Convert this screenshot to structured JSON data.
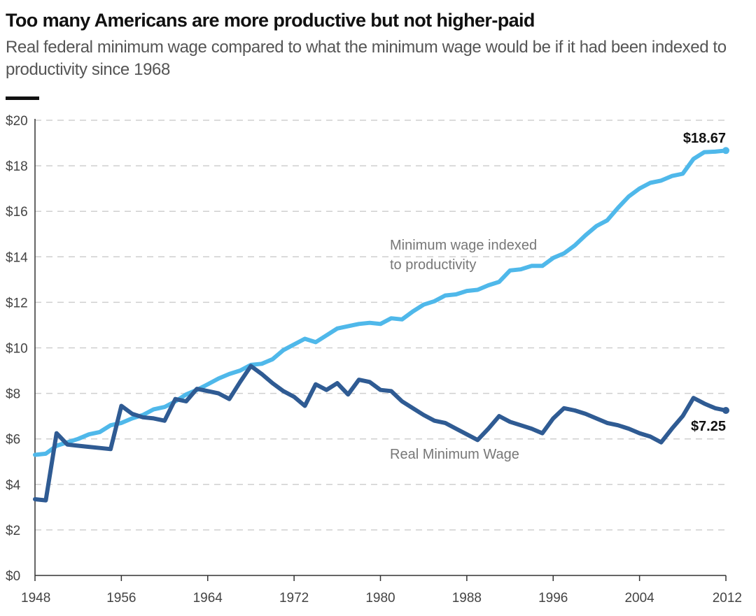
{
  "header": {
    "title": "Too many Americans are more productive but not higher-paid",
    "subtitle": "Real federal minimum wage compared to what the minimum wage would be if it had been indexed to productivity since 1968"
  },
  "colors": {
    "productivity_line": "#4fb8ea",
    "real_wage_line": "#2f5b93",
    "grid": "#cfcfcf",
    "axis": "#333333"
  },
  "chart_data": {
    "type": "line",
    "title": "Too many Americans are more productive but not higher-paid",
    "subtitle": "Real federal minimum wage compared to what the minimum wage would be if it had been indexed to productivity since 1968",
    "xlabel": "",
    "ylabel": "",
    "xlim": [
      1948,
      2012
    ],
    "ylim": [
      0,
      20
    ],
    "grid": true,
    "legend": "none",
    "x_ticks": [
      1948,
      1956,
      1964,
      1972,
      1980,
      1988,
      1996,
      2004,
      2012
    ],
    "y_ticks": [
      0,
      2,
      4,
      6,
      8,
      10,
      12,
      14,
      16,
      18,
      20
    ],
    "y_tick_labels": [
      "$0",
      "$2",
      "$4",
      "$6",
      "$8",
      "$10",
      "$12",
      "$14",
      "$16",
      "$18",
      "$20"
    ],
    "x_tick_labels": [
      "1948",
      "1956",
      "1964",
      "1972",
      "1980",
      "1988",
      "1996",
      "2004",
      "2012"
    ],
    "series": [
      {
        "key": "productivity",
        "label_lines": [
          "Minimum wage indexed",
          "to productivity"
        ],
        "label_at": [
          1948,
          0
        ],
        "end_label": "$18.67",
        "points": [
          [
            1948,
            5.3
          ],
          [
            1949,
            5.35
          ],
          [
            1950,
            5.7
          ],
          [
            1951,
            5.85
          ],
          [
            1952,
            6.0
          ],
          [
            1953,
            6.2
          ],
          [
            1954,
            6.3
          ],
          [
            1955,
            6.6
          ],
          [
            1956,
            6.7
          ],
          [
            1957,
            6.9
          ],
          [
            1958,
            7.05
          ],
          [
            1959,
            7.3
          ],
          [
            1960,
            7.4
          ],
          [
            1961,
            7.65
          ],
          [
            1962,
            7.95
          ],
          [
            1963,
            8.15
          ],
          [
            1964,
            8.4
          ],
          [
            1965,
            8.65
          ],
          [
            1966,
            8.85
          ],
          [
            1967,
            9.0
          ],
          [
            1968,
            9.25
          ],
          [
            1969,
            9.3
          ],
          [
            1970,
            9.5
          ],
          [
            1971,
            9.9
          ],
          [
            1972,
            10.15
          ],
          [
            1973,
            10.4
          ],
          [
            1974,
            10.25
          ],
          [
            1975,
            10.55
          ],
          [
            1976,
            10.85
          ],
          [
            1977,
            10.95
          ],
          [
            1978,
            11.05
          ],
          [
            1979,
            11.1
          ],
          [
            1980,
            11.05
          ],
          [
            1981,
            11.3
          ],
          [
            1982,
            11.25
          ],
          [
            1983,
            11.6
          ],
          [
            1984,
            11.9
          ],
          [
            1985,
            12.05
          ],
          [
            1986,
            12.3
          ],
          [
            1987,
            12.35
          ],
          [
            1988,
            12.5
          ],
          [
            1989,
            12.55
          ],
          [
            1990,
            12.75
          ],
          [
            1991,
            12.9
          ],
          [
            1992,
            13.4
          ],
          [
            1993,
            13.45
          ],
          [
            1994,
            13.6
          ],
          [
            1995,
            13.6
          ],
          [
            1996,
            13.95
          ],
          [
            1997,
            14.15
          ],
          [
            1998,
            14.5
          ],
          [
            1999,
            14.95
          ],
          [
            2000,
            15.35
          ],
          [
            2001,
            15.6
          ],
          [
            2002,
            16.15
          ],
          [
            2003,
            16.65
          ],
          [
            2004,
            17.0
          ],
          [
            2005,
            17.25
          ],
          [
            2006,
            17.35
          ],
          [
            2007,
            17.55
          ],
          [
            2008,
            17.65
          ],
          [
            2009,
            18.3
          ],
          [
            2010,
            18.6
          ],
          [
            2011,
            18.62
          ],
          [
            2012,
            18.67
          ]
        ]
      },
      {
        "key": "real_wage",
        "label_lines": [
          "Real Minimum Wage"
        ],
        "end_label": "$7.25",
        "points": [
          [
            1948,
            3.35
          ],
          [
            1949,
            3.3
          ],
          [
            1950,
            6.25
          ],
          [
            1951,
            5.75
          ],
          [
            1952,
            5.7
          ],
          [
            1953,
            5.65
          ],
          [
            1954,
            5.6
          ],
          [
            1955,
            5.55
          ],
          [
            1956,
            7.45
          ],
          [
            1957,
            7.1
          ],
          [
            1958,
            6.95
          ],
          [
            1959,
            6.9
          ],
          [
            1960,
            6.8
          ],
          [
            1961,
            7.75
          ],
          [
            1962,
            7.65
          ],
          [
            1963,
            8.2
          ],
          [
            1964,
            8.1
          ],
          [
            1965,
            8.0
          ],
          [
            1966,
            7.75
          ],
          [
            1967,
            8.5
          ],
          [
            1968,
            9.2
          ],
          [
            1969,
            8.85
          ],
          [
            1970,
            8.45
          ],
          [
            1971,
            8.1
          ],
          [
            1972,
            7.85
          ],
          [
            1973,
            7.45
          ],
          [
            1974,
            8.4
          ],
          [
            1975,
            8.15
          ],
          [
            1976,
            8.45
          ],
          [
            1977,
            7.95
          ],
          [
            1978,
            8.6
          ],
          [
            1979,
            8.5
          ],
          [
            1980,
            8.15
          ],
          [
            1981,
            8.1
          ],
          [
            1982,
            7.65
          ],
          [
            1983,
            7.35
          ],
          [
            1984,
            7.05
          ],
          [
            1985,
            6.8
          ],
          [
            1986,
            6.7
          ],
          [
            1987,
            6.45
          ],
          [
            1988,
            6.2
          ],
          [
            1989,
            5.95
          ],
          [
            1990,
            6.45
          ],
          [
            1991,
            7.0
          ],
          [
            1992,
            6.75
          ],
          [
            1993,
            6.6
          ],
          [
            1994,
            6.45
          ],
          [
            1995,
            6.25
          ],
          [
            1996,
            6.9
          ],
          [
            1997,
            7.35
          ],
          [
            1998,
            7.25
          ],
          [
            1999,
            7.1
          ],
          [
            2000,
            6.9
          ],
          [
            2001,
            6.7
          ],
          [
            2002,
            6.6
          ],
          [
            2003,
            6.45
          ],
          [
            2004,
            6.25
          ],
          [
            2005,
            6.1
          ],
          [
            2006,
            5.85
          ],
          [
            2007,
            6.45
          ],
          [
            2008,
            7.0
          ],
          [
            2009,
            7.8
          ],
          [
            2010,
            7.55
          ],
          [
            2011,
            7.35
          ],
          [
            2012,
            7.25
          ]
        ]
      }
    ]
  }
}
